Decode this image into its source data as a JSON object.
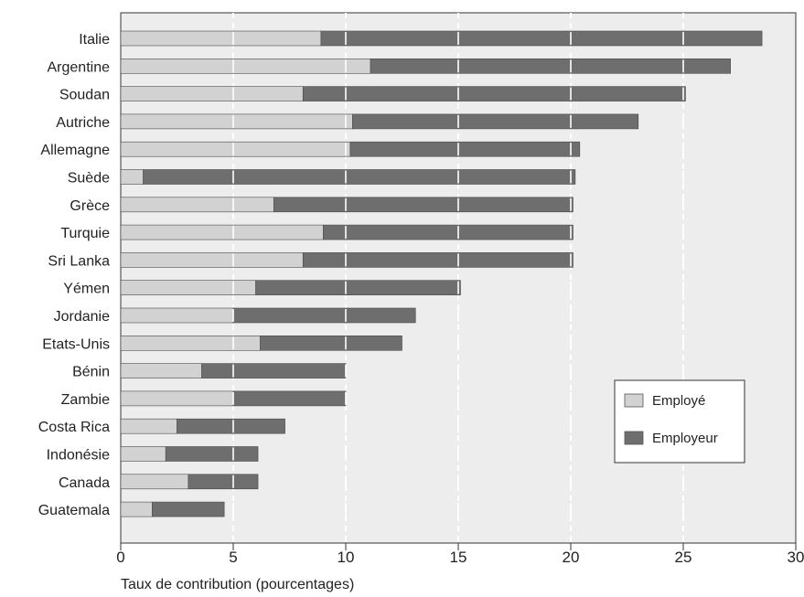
{
  "chart_data": {
    "type": "bar",
    "orientation": "horizontal",
    "stacked": true,
    "categories": [
      "Italie",
      "Argentine",
      "Soudan",
      "Autriche",
      "Allemagne",
      "Suède",
      "Grèce",
      "Turquie",
      "Sri Lanka",
      "Yémen",
      "Jordanie",
      "Etats-Unis",
      "Bénin",
      "Zambie",
      "Costa Rica",
      "Indonésie",
      "Canada",
      "Guatemala"
    ],
    "series": [
      {
        "name": "Employé",
        "color": "#d2d2d2",
        "values": [
          8.9,
          11.1,
          8.1,
          10.3,
          10.2,
          1.0,
          6.8,
          9.0,
          8.1,
          6.0,
          5.0,
          6.2,
          3.6,
          5.0,
          2.5,
          2.0,
          3.0,
          1.4
        ]
      },
      {
        "name": "Employeur",
        "color": "#6e6e6e",
        "values": [
          19.6,
          16.0,
          17.0,
          12.7,
          10.2,
          19.2,
          13.3,
          11.1,
          12.0,
          9.1,
          8.1,
          6.3,
          6.4,
          5.0,
          4.8,
          4.1,
          3.1,
          3.2
        ]
      }
    ],
    "xlabel": "Taux de contribution (pourcentages)",
    "xlim": [
      0,
      30
    ],
    "xticks": [
      "0",
      "5",
      "10",
      "15",
      "20",
      "25",
      "30"
    ],
    "grid": "vertical dashed lines at each x tick",
    "legend": {
      "position": "right",
      "entries": [
        "Employé",
        "Employeur"
      ]
    }
  }
}
